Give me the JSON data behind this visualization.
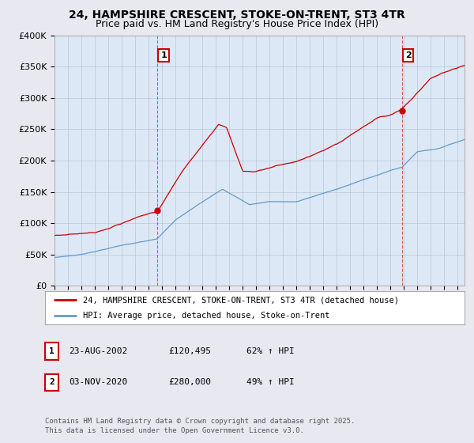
{
  "title_line1": "24, HAMPSHIRE CRESCENT, STOKE-ON-TRENT, ST3 4TR",
  "title_line2": "Price paid vs. HM Land Registry's House Price Index (HPI)",
  "bg_color": "#e8e8f0",
  "plot_bg_color": "#dce8f5",
  "ylabel_ticks": [
    "£0",
    "£50K",
    "£100K",
    "£150K",
    "£200K",
    "£250K",
    "£300K",
    "£350K",
    "£400K"
  ],
  "ytick_values": [
    0,
    50000,
    100000,
    150000,
    200000,
    250000,
    300000,
    350000,
    400000
  ],
  "ylim": [
    0,
    400000
  ],
  "xlim_start": 1995.0,
  "xlim_end": 2025.5,
  "xticks": [
    1995,
    1996,
    1997,
    1998,
    1999,
    2000,
    2001,
    2002,
    2003,
    2004,
    2005,
    2006,
    2007,
    2008,
    2009,
    2010,
    2011,
    2012,
    2013,
    2014,
    2015,
    2016,
    2017,
    2018,
    2019,
    2020,
    2021,
    2022,
    2023,
    2024,
    2025
  ],
  "red_line_color": "#cc0000",
  "blue_line_color": "#6699cc",
  "marker1_date": 2002.64,
  "marker1_price": 120495,
  "marker2_date": 2020.84,
  "marker2_price": 280000,
  "legend_label_red": "24, HAMPSHIRE CRESCENT, STOKE-ON-TRENT, ST3 4TR (detached house)",
  "legend_label_blue": "HPI: Average price, detached house, Stoke-on-Trent",
  "table_row1": [
    "1",
    "23-AUG-2002",
    "£120,495",
    "62% ↑ HPI"
  ],
  "table_row2": [
    "2",
    "03-NOV-2020",
    "£280,000",
    "49% ↑ HPI"
  ],
  "footer_text": "Contains HM Land Registry data © Crown copyright and database right 2025.\nThis data is licensed under the Open Government Licence v3.0.",
  "grid_color": "#b8c8d8",
  "vline_color": "#cc0000",
  "vline_alpha": 0.6
}
